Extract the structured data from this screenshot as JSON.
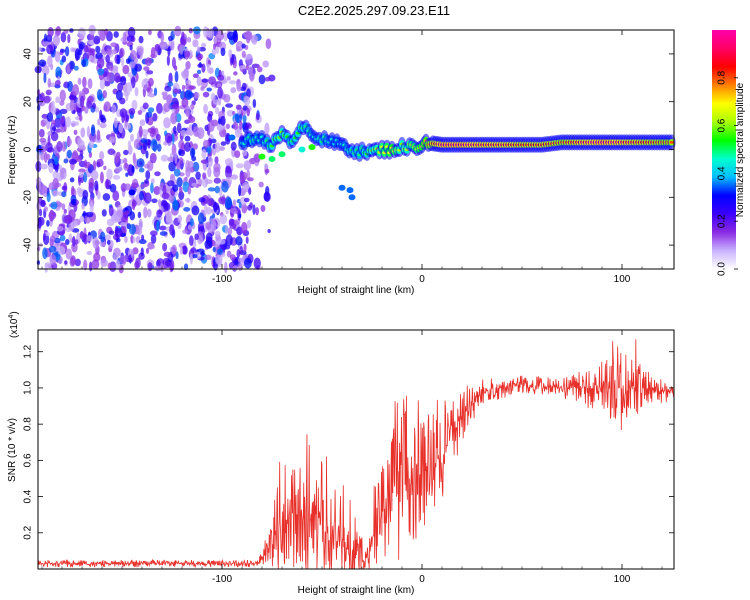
{
  "title": "C2E2.2025.297.09.23.E11",
  "chart_data": [
    {
      "type": "heatmap",
      "name": "spectrogram",
      "xlabel": "Height of straight line (km)",
      "ylabel": "Frequency (Hz)",
      "xlim": [
        -192,
        126
      ],
      "ylim": [
        -50,
        50
      ],
      "xticks": [
        -100,
        0,
        100
      ],
      "xtick_labels": [
        "-100",
        "0",
        "100"
      ],
      "yticks": [
        -40,
        -20,
        0,
        20,
        40
      ],
      "ytick_labels": [
        "-40",
        "-20",
        "0",
        "20",
        "40"
      ],
      "colorbar": {
        "label": "Normalized spectral amplitude",
        "range": [
          0,
          1
        ],
        "ticks": [
          0.0,
          0.2,
          0.4,
          0.6,
          0.8
        ],
        "tick_labels": [
          "0.0",
          "0.2",
          "0.4",
          "0.6",
          "0.8"
        ],
        "colors": [
          "#ffffff",
          "#c9b3ff",
          "#8a2be2",
          "#3b00ff",
          "#0000ff",
          "#00bfff",
          "#00ffcc",
          "#00ff00",
          "#aaff00",
          "#ffff00",
          "#ff8000",
          "#ff0000",
          "#ff0066",
          "#ff00aa"
        ]
      },
      "noise_region_x": [
        -192,
        -85
      ],
      "ridge": [
        {
          "x": -90,
          "y": 3,
          "v": 0.45
        },
        {
          "x": -85,
          "y": 4,
          "v": 0.5
        },
        {
          "x": -80,
          "y": 5,
          "v": 0.45
        },
        {
          "x": -75,
          "y": 2,
          "v": 0.55
        },
        {
          "x": -70,
          "y": 6,
          "v": 0.6
        },
        {
          "x": -66,
          "y": 3,
          "v": 0.5
        },
        {
          "x": -62,
          "y": 8,
          "v": 0.55
        },
        {
          "x": -58,
          "y": 10,
          "v": 0.5
        },
        {
          "x": -54,
          "y": 6,
          "v": 0.45
        },
        {
          "x": -50,
          "y": 4,
          "v": 0.5
        },
        {
          "x": -45,
          "y": 3,
          "v": 0.45
        },
        {
          "x": -40,
          "y": 2,
          "v": 0.45
        },
        {
          "x": -35,
          "y": 0,
          "v": 0.5
        },
        {
          "x": -30,
          "y": -1,
          "v": 0.5
        },
        {
          "x": -25,
          "y": -1,
          "v": 0.6
        },
        {
          "x": -20,
          "y": 0,
          "v": 0.65
        },
        {
          "x": -15,
          "y": 0,
          "v": 0.7
        },
        {
          "x": -10,
          "y": 1,
          "v": 0.6
        },
        {
          "x": -5,
          "y": 1,
          "v": 0.65
        },
        {
          "x": 0,
          "y": 2,
          "v": 0.7
        },
        {
          "x": 2,
          "y": 3,
          "v": 0.75
        },
        {
          "x": 10,
          "y": 2,
          "v": 0.95
        },
        {
          "x": 20,
          "y": 2,
          "v": 0.95
        },
        {
          "x": 30,
          "y": 2,
          "v": 0.9
        },
        {
          "x": 40,
          "y": 2,
          "v": 0.9
        },
        {
          "x": 50,
          "y": 2,
          "v": 0.85
        },
        {
          "x": 60,
          "y": 2,
          "v": 0.85
        },
        {
          "x": 70,
          "y": 3,
          "v": 0.8
        },
        {
          "x": 80,
          "y": 3,
          "v": 0.9
        },
        {
          "x": 90,
          "y": 3,
          "v": 0.95
        },
        {
          "x": 100,
          "y": 3,
          "v": 0.9
        },
        {
          "x": 110,
          "y": 3,
          "v": 0.85
        },
        {
          "x": 120,
          "y": 3,
          "v": 0.8
        },
        {
          "x": 126,
          "y": 3,
          "v": 0.8
        }
      ],
      "blobs": [
        {
          "x": -80,
          "y": -3,
          "v": 0.55
        },
        {
          "x": -75,
          "y": -4,
          "v": 0.5
        },
        {
          "x": -70,
          "y": -2,
          "v": 0.5
        },
        {
          "x": -60,
          "y": 0,
          "v": 0.45
        },
        {
          "x": -55,
          "y": 1,
          "v": 0.55
        },
        {
          "x": -40,
          "y": -16,
          "v": 0.35
        },
        {
          "x": -36,
          "y": -17,
          "v": 0.35
        },
        {
          "x": -35,
          "y": -20,
          "v": 0.35
        },
        {
          "x": -145,
          "y": -18,
          "v": 0.3
        },
        {
          "x": -95,
          "y": 5,
          "v": 0.35
        }
      ]
    },
    {
      "type": "line",
      "name": "snr",
      "xlabel": "Height of straight line (km)",
      "ylabel": "SNR (10 * v/v)",
      "multiplier_label": "(x10",
      "multiplier_exponent": "4",
      "multiplier_close": ")",
      "xlim": [
        -192,
        126
      ],
      "ylim": [
        0,
        1.32
      ],
      "xticks": [
        -100,
        0,
        100
      ],
      "xtick_labels": [
        "-100",
        "0",
        "100"
      ],
      "yticks": [
        0.2,
        0.4,
        0.6,
        0.8,
        1.0,
        1.2
      ],
      "ytick_labels": [
        "0.2",
        "0.4",
        "0.6",
        "0.8",
        "1.0",
        "1.2"
      ],
      "color": "#e8302a",
      "envelope": [
        {
          "x": -192,
          "base": 0.03,
          "amp": 0.02
        },
        {
          "x": -82,
          "base": 0.03,
          "amp": 0.02
        },
        {
          "x": -76,
          "base": 0.12,
          "amp": 0.08
        },
        {
          "x": -72,
          "base": 0.25,
          "amp": 0.35
        },
        {
          "x": -62,
          "base": 0.3,
          "amp": 0.35
        },
        {
          "x": -50,
          "base": 0.25,
          "amp": 0.35
        },
        {
          "x": -38,
          "base": 0.12,
          "amp": 0.25
        },
        {
          "x": -28,
          "base": 0.04,
          "amp": 0.06
        },
        {
          "x": -24,
          "base": 0.2,
          "amp": 0.2
        },
        {
          "x": -18,
          "base": 0.35,
          "amp": 0.35
        },
        {
          "x": -10,
          "base": 0.45,
          "amp": 0.4
        },
        {
          "x": 0,
          "base": 0.55,
          "amp": 0.35
        },
        {
          "x": 10,
          "base": 0.62,
          "amp": 0.25
        },
        {
          "x": 20,
          "base": 0.85,
          "amp": 0.15
        },
        {
          "x": 30,
          "base": 0.98,
          "amp": 0.07
        },
        {
          "x": 50,
          "base": 1.02,
          "amp": 0.05
        },
        {
          "x": 70,
          "base": 1.0,
          "amp": 0.06
        },
        {
          "x": 85,
          "base": 1.0,
          "amp": 0.12
        },
        {
          "x": 100,
          "base": 1.0,
          "amp": 0.25
        },
        {
          "x": 110,
          "base": 1.0,
          "amp": 0.12
        },
        {
          "x": 126,
          "base": 0.97,
          "amp": 0.04
        }
      ]
    }
  ]
}
